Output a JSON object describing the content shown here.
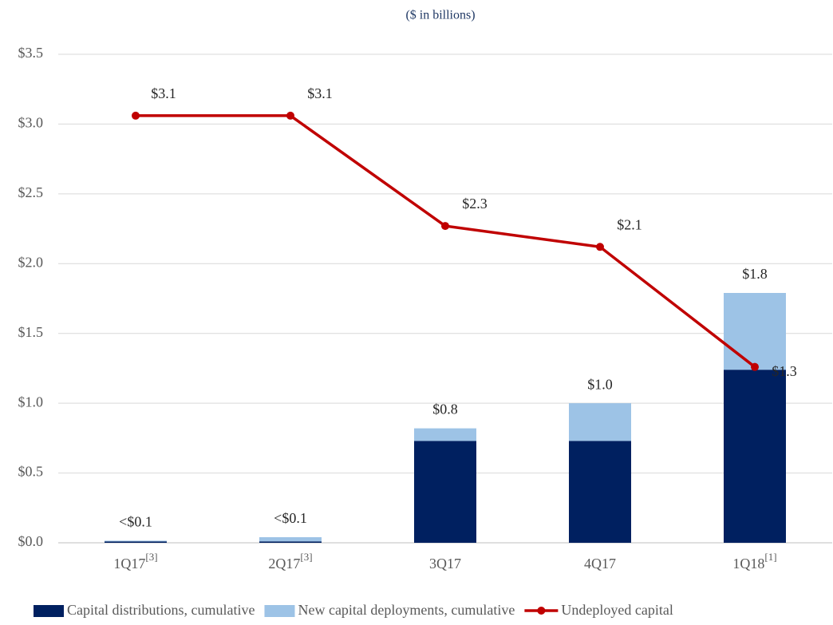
{
  "chart_data": {
    "type": "stacked_bar_line",
    "subtitle": "($ in billions)",
    "categories": [
      "1Q17",
      "2Q17",
      "3Q17",
      "4Q17",
      "1Q18"
    ],
    "category_notes": [
      "[3]",
      "[3]",
      null,
      null,
      "[1]"
    ],
    "series": [
      {
        "name": "Capital distributions, cumulative",
        "color": "#002060",
        "kind": "bar",
        "values": [
          0.01,
          0.01,
          0.73,
          0.73,
          1.24
        ]
      },
      {
        "name": "New capital deployments, cumulative",
        "color": "#9dc3e6",
        "kind": "bar",
        "values": [
          0.005,
          0.03,
          0.09,
          0.27,
          0.55
        ]
      },
      {
        "name": "Undeployed capital",
        "color": "#c00000",
        "kind": "line",
        "values": [
          3.06,
          3.06,
          2.27,
          2.12,
          1.26
        ],
        "value_labels": [
          "$3.1",
          "$3.1",
          "$2.3",
          "$2.1",
          "$1.3"
        ]
      }
    ],
    "total_labels": [
      "<$0.1",
      "<$0.1",
      "$0.8",
      "$1.0",
      "$1.8"
    ],
    "ylim": [
      0,
      3.5
    ],
    "yticks": [
      {
        "value": 0,
        "label": "$0.0"
      },
      {
        "value": 0.5,
        "label": "$0.5"
      },
      {
        "value": 1,
        "label": "$1.0"
      },
      {
        "value": 1.5,
        "label": "$1.5"
      },
      {
        "value": 2,
        "label": "$2.0"
      },
      {
        "value": 2.5,
        "label": "$2.5"
      },
      {
        "value": 3,
        "label": "$3.0"
      },
      {
        "value": 3.5,
        "label": "$3.5"
      }
    ],
    "grid": true,
    "legend": "bottom"
  }
}
